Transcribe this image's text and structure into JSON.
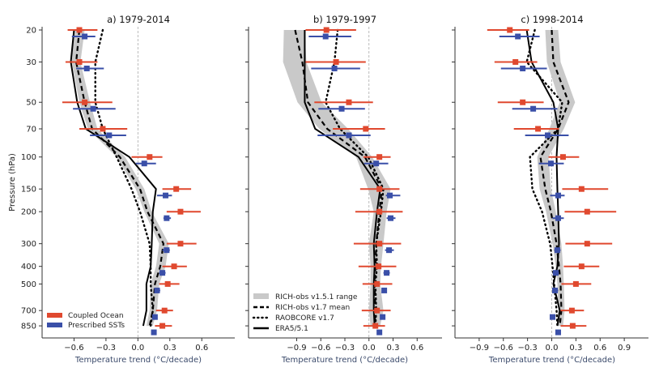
{
  "chart_data": {
    "type": "line",
    "description": "Vertical profiles of temperature trend vs pressure, three panels",
    "ylabel": "Pressure (hPa)",
    "yscale": "log",
    "yaxis_inverted": true,
    "ylim": [
      19,
      990
    ],
    "yticks": [
      20,
      30,
      50,
      70,
      100,
      150,
      200,
      300,
      400,
      500,
      700,
      850
    ],
    "pressure_levels": [
      20,
      30,
      50,
      70,
      100,
      150,
      200,
      300,
      400,
      500,
      700,
      850
    ],
    "colors": {
      "coupled_ocean": "#e0492f",
      "prescribed_ssts": "#3a4fa8",
      "rich_range": "#c9c9c9",
      "lines": "#000000",
      "zero_line": "#aaaaaa"
    },
    "legend_models": {
      "placement": "lower-left",
      "panel": 0,
      "entries": [
        {
          "key": "coupled_ocean",
          "label": "Coupled Ocean"
        },
        {
          "key": "prescribed_ssts",
          "label": "Prescribed SSTs"
        }
      ]
    },
    "legend_obs": {
      "placement": "lower-left",
      "panel": 1,
      "entries": [
        {
          "key": "rich_range",
          "style": "shade",
          "label": "RICH-obs v1.5.1 range"
        },
        {
          "key": "rich_mean",
          "style": "dashed",
          "label": "RICH-obs v1.7 mean"
        },
        {
          "key": "raobcore",
          "style": "dotted",
          "label": "RAOBCORE v1.7"
        },
        {
          "key": "era5",
          "style": "solid",
          "label": "ERA5/5.1"
        }
      ]
    },
    "panels": [
      {
        "title": "a) 1979-2014",
        "xlabel": "Temperature trend (°C/decade)",
        "xlim": [
          -0.9,
          0.91
        ],
        "xticks": [
          -0.6,
          -0.3,
          0.0,
          0.6,
          0.3
        ],
        "xtick_labels": [
          "−0.6",
          "−0.3",
          "0.0",
          "0.6",
          "0.3"
        ],
        "rich_range": {
          "low": [
            -0.6,
            -0.62,
            -0.55,
            -0.47,
            -0.2,
            -0.02,
            0.06,
            0.2,
            0.17,
            0.12,
            0.11,
            0.08
          ],
          "high": [
            -0.5,
            -0.54,
            -0.45,
            -0.38,
            -0.12,
            0.06,
            0.13,
            0.29,
            0.26,
            0.2,
            0.18,
            0.14
          ]
        },
        "rich_mean": [
          -0.55,
          -0.58,
          -0.5,
          -0.43,
          -0.17,
          0.02,
          0.09,
          0.24,
          0.21,
          0.16,
          0.14,
          0.11
        ],
        "raobcore": [
          -0.33,
          -0.4,
          -0.4,
          -0.33,
          -0.2,
          -0.06,
          0.02,
          0.11,
          0.12,
          0.12,
          0.14,
          0.12
        ],
        "era5": [
          -0.6,
          -0.63,
          -0.57,
          -0.49,
          -0.08,
          0.17,
          0.14,
          0.13,
          0.12,
          0.08,
          0.08,
          0.05
        ],
        "coupled_ocean": {
          "mean": [
            -0.55,
            -0.55,
            -0.5,
            -0.33,
            0.11,
            0.36,
            0.4,
            0.4,
            0.34,
            0.28,
            0.25,
            0.23
          ],
          "low": [
            -0.66,
            -0.68,
            -0.71,
            -0.55,
            -0.06,
            0.23,
            0.27,
            0.27,
            0.23,
            0.2,
            0.17,
            0.16
          ],
          "high": [
            -0.38,
            -0.38,
            -0.24,
            -0.1,
            0.23,
            0.5,
            0.59,
            0.55,
            0.46,
            0.39,
            0.33,
            0.32
          ]
        },
        "prescribed_ssts": {
          "mean": [
            -0.5,
            -0.48,
            -0.42,
            -0.27,
            0.06,
            0.26,
            0.27,
            0.27,
            0.23,
            0.18,
            0.16,
            0.15
          ],
          "low": [
            -0.62,
            -0.58,
            -0.61,
            -0.45,
            -0.02,
            0.18,
            0.24,
            0.23,
            0.2,
            0.16,
            0.14,
            0.13
          ],
          "high": [
            -0.4,
            -0.32,
            -0.21,
            -0.11,
            0.17,
            0.32,
            0.31,
            0.3,
            0.26,
            0.21,
            0.18,
            0.17
          ]
        }
      },
      {
        "title": "b) 1979-1997",
        "xlabel": "Temperature trend (°C/decade)",
        "xlim": [
          -1.5,
          0.91
        ],
        "xticks": [
          -0.9,
          -0.6,
          -0.3,
          0.0,
          0.3,
          0.6
        ],
        "xtick_labels": [
          "−0.9",
          "−0.6",
          "−0.3",
          "0.0",
          "0.3",
          "0.6"
        ],
        "rich_range": {
          "low": [
            -1.06,
            -1.07,
            -0.89,
            -0.62,
            -0.16,
            -0.01,
            0.06,
            0.0,
            0.02,
            0.02,
            0.0,
            0.02
          ],
          "high": [
            -0.8,
            -0.78,
            -0.59,
            -0.26,
            0.04,
            0.27,
            0.22,
            0.18,
            0.15,
            0.14,
            0.18,
            0.14
          ]
        },
        "rich_mean": [
          -0.92,
          -0.83,
          -0.76,
          -0.52,
          -0.05,
          0.16,
          0.13,
          0.09,
          0.08,
          0.07,
          0.08,
          0.07
        ],
        "raobcore": [
          -0.39,
          -0.43,
          -0.54,
          -0.36,
          -0.01,
          0.18,
          0.15,
          0.09,
          0.1,
          0.08,
          0.09,
          0.08
        ],
        "era5": [
          -0.8,
          -0.8,
          -0.8,
          -0.67,
          -0.13,
          0.14,
          0.1,
          0.06,
          0.07,
          0.06,
          0.06,
          0.07
        ],
        "coupled_ocean": {
          "mean": [
            -0.53,
            -0.41,
            -0.25,
            -0.04,
            0.13,
            0.13,
            0.13,
            0.13,
            0.12,
            0.1,
            0.1,
            0.08
          ],
          "low": [
            -0.79,
            -0.79,
            -0.68,
            -0.45,
            -0.07,
            -0.11,
            -0.17,
            -0.19,
            -0.13,
            -0.08,
            -0.09,
            -0.07
          ],
          "high": [
            -0.16,
            -0.04,
            0.05,
            0.2,
            0.27,
            0.38,
            0.42,
            0.4,
            0.34,
            0.29,
            0.27,
            0.2
          ]
        },
        "prescribed_ssts": {
          "mean": [
            -0.54,
            -0.43,
            -0.34,
            -0.25,
            0.09,
            0.26,
            0.27,
            0.25,
            0.22,
            0.19,
            0.17,
            0.13
          ],
          "low": [
            -0.75,
            -0.72,
            -0.63,
            -0.64,
            -0.06,
            0.21,
            0.22,
            0.2,
            0.18,
            0.16,
            0.14,
            0.1
          ],
          "high": [
            -0.22,
            -0.11,
            -0.05,
            0.02,
            0.24,
            0.39,
            0.33,
            0.31,
            0.26,
            0.22,
            0.2,
            0.16
          ]
        }
      },
      {
        "title": "c) 1998-2014",
        "xlabel": "Temperature trend (°C/decade)",
        "xlim": [
          -1.2,
          1.2
        ],
        "xticks": [
          -0.9,
          -0.6,
          -0.3,
          0.0,
          0.3,
          0.6,
          0.9
        ],
        "xtick_labels": [
          "−0.9",
          "−0.6",
          "−0.3",
          "0.0",
          "0.3",
          "0.6",
          "0.9"
        ],
        "rich_range": {
          "low": [
            -0.08,
            -0.06,
            0.1,
            -0.03,
            -0.18,
            -0.15,
            -0.07,
            0.01,
            0.05,
            0.07,
            0.08,
            0.06
          ],
          "high": [
            0.08,
            0.11,
            0.29,
            0.15,
            -0.04,
            -0.01,
            0.05,
            0.12,
            0.14,
            0.15,
            0.16,
            0.14
          ]
        },
        "rich_mean": [
          0.0,
          0.02,
          0.21,
          0.08,
          -0.14,
          -0.08,
          -0.01,
          0.06,
          0.09,
          0.11,
          0.12,
          0.1
        ],
        "raobcore": [
          -0.21,
          -0.31,
          0.13,
          0.08,
          -0.27,
          -0.24,
          -0.12,
          -0.02,
          0.01,
          0.03,
          0.06,
          0.07
        ],
        "era5": [
          -0.31,
          -0.25,
          0.02,
          0.08,
          0.06,
          0.07,
          0.08,
          0.09,
          0.07,
          0.02,
          0.1,
          0.07
        ],
        "coupled_ocean": {
          "mean": [
            -0.52,
            -0.45,
            -0.36,
            -0.17,
            0.14,
            0.37,
            0.44,
            0.44,
            0.37,
            0.3,
            0.25,
            0.26
          ],
          "low": [
            -0.8,
            -0.71,
            -0.67,
            -0.47,
            -0.04,
            0.13,
            0.16,
            0.17,
            0.15,
            0.12,
            0.11,
            0.11
          ],
          "high": [
            -0.28,
            -0.18,
            -0.1,
            0.09,
            0.34,
            0.7,
            0.8,
            0.75,
            0.59,
            0.49,
            0.4,
            0.43
          ]
        },
        "prescribed_ssts": {
          "mean": [
            -0.42,
            -0.36,
            -0.23,
            -0.05,
            -0.01,
            0.08,
            0.08,
            0.07,
            0.05,
            0.04,
            0.01,
            0.08
          ],
          "low": [
            -0.65,
            -0.63,
            -0.49,
            -0.33,
            -0.16,
            -0.02,
            0.01,
            0.03,
            0.01,
            0.01,
            -0.01,
            0.05
          ],
          "high": [
            -0.15,
            -0.06,
            0.07,
            0.21,
            0.15,
            0.16,
            0.15,
            0.11,
            0.09,
            0.08,
            0.03,
            0.11
          ]
        }
      }
    ]
  }
}
